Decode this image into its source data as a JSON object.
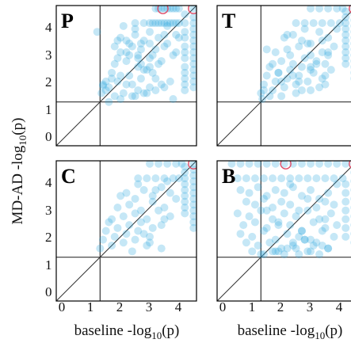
{
  "figure": {
    "y_axis_label": {
      "main": "MD-AD -log",
      "sub": "10",
      "tail": "(p)"
    },
    "x_axis_label": {
      "main": "baseline -log",
      "sub": "10",
      "tail": "(p)"
    },
    "x_tick_labels": [
      "0",
      "1",
      "2",
      "3",
      "4"
    ],
    "y_tick_labels": [
      "0",
      "1",
      "2",
      "3",
      "4"
    ]
  },
  "colors": {
    "points": "#2ea8e0",
    "highlight_ring": "#e04a66",
    "reference_lines": "#333333"
  },
  "chart_data": [
    {
      "type": "scatter",
      "panel_label": "P",
      "xlim": [
        -0.2,
        4.6
      ],
      "ylim": [
        -0.2,
        4.6
      ],
      "threshold": 1.3,
      "diagonal": true,
      "highlighted": [
        [
          3.45,
          4.5
        ],
        [
          4.5,
          4.5
        ]
      ],
      "x": [
        4.5,
        4.5,
        4.5,
        4.5,
        4.5,
        4.5,
        4.5,
        4.5,
        4.5,
        4.5,
        4.5,
        4.5,
        4.5,
        4.5,
        4.2,
        4.2,
        4.2,
        4.2,
        4.2,
        4.2,
        4.2,
        4.2,
        4.2,
        4.2,
        4.2,
        4.2,
        3.2,
        3.4,
        3.6,
        3.8,
        4.0,
        3.5,
        3.9,
        3.3,
        3.7,
        2.5,
        2.8,
        3.0,
        3.1,
        3.2,
        3.3,
        3.4,
        3.5,
        3.6,
        3.7,
        3.8,
        3.9,
        4.0,
        2.2,
        2.5,
        2.7,
        3.0,
        3.3,
        3.6,
        3.9,
        2.0,
        2.4,
        2.8,
        3.2,
        3.6,
        4.0,
        1.9,
        2.3,
        2.7,
        3.1,
        3.5,
        3.9,
        1.8,
        2.2,
        2.6,
        3.0,
        3.4,
        3.8,
        2.0,
        2.5,
        3.0,
        3.5,
        1.8,
        2.1,
        2.6,
        2.9,
        3.3,
        1.7,
        2.3,
        2.8,
        3.2,
        1.5,
        2.0,
        2.4,
        2.7,
        3.1,
        1.6,
        1.9,
        2.2,
        2.6,
        3.0,
        3.4,
        3.7,
        1.35,
        1.5,
        1.8,
        2.1,
        2.5,
        2.9,
        1.6,
        2.0,
        2.4,
        2.8,
        3.2,
        1.4,
        1.7,
        2.2,
        2.6,
        3.0,
        1.2,
        1.9,
        2.3,
        2.7,
        3.5,
        3.8,
        1.4
      ],
      "y": [
        4.5,
        4.2,
        4.0,
        3.8,
        3.6,
        3.4,
        3.2,
        3.0,
        2.8,
        2.6,
        2.4,
        2.2,
        2.0,
        1.8,
        4.3,
        4.0,
        3.7,
        3.5,
        3.2,
        3.0,
        2.8,
        2.5,
        2.3,
        2.1,
        1.9,
        1.7,
        4.5,
        4.5,
        4.5,
        4.5,
        4.5,
        4.5,
        4.5,
        4.5,
        4.5,
        4.0,
        4.0,
        4.0,
        4.0,
        4.0,
        4.0,
        4.0,
        4.0,
        4.0,
        4.0,
        4.0,
        4.0,
        4.0,
        3.4,
        3.6,
        3.3,
        3.7,
        3.5,
        3.9,
        3.6,
        3.0,
        3.2,
        3.4,
        3.1,
        3.3,
        3.5,
        2.8,
        2.9,
        3.1,
        2.9,
        3.2,
        3.0,
        2.6,
        2.7,
        2.8,
        2.5,
        2.7,
        2.9,
        3.5,
        3.8,
        3.3,
        3.6,
        3.2,
        3.9,
        2.5,
        2.4,
        2.6,
        2.3,
        2.2,
        2.4,
        2.1,
        2.0,
        2.2,
        1.9,
        2.1,
        2.3,
        1.8,
        2.0,
        1.9,
        1.7,
        1.8,
        1.9,
        2.0,
        1.6,
        1.7,
        1.5,
        1.6,
        1.5,
        1.6,
        1.3,
        1.4,
        1.5,
        1.6,
        1.7,
        1.9,
        2.1,
        3.0,
        2.9,
        2.8,
        3.7,
        3.4,
        3.3,
        2.6,
        1.8,
        1.4,
        1.85
      ]
    },
    {
      "type": "scatter",
      "panel_label": "T",
      "xlim": [
        -0.2,
        4.6
      ],
      "ylim": [
        -0.2,
        4.6
      ],
      "threshold": 1.3,
      "diagonal": true,
      "highlighted": [
        [
          4.5,
          4.5
        ]
      ],
      "x": [
        4.5,
        4.5,
        4.5,
        4.5,
        4.5,
        4.5,
        4.5,
        4.5,
        4.5,
        4.5,
        4.5,
        4.5,
        4.5,
        4.2,
        4.2,
        4.2,
        4.2,
        4.2,
        4.2,
        4.2,
        4.2,
        4.2,
        4.2,
        3.0,
        3.3,
        3.6,
        3.9,
        4.1,
        2.5,
        2.8,
        3.1,
        3.4,
        3.7,
        4.0,
        2.1,
        2.4,
        2.7,
        3.0,
        3.3,
        3.6,
        3.9,
        1.8,
        2.2,
        2.6,
        3.0,
        3.4,
        3.8,
        1.6,
        2.0,
        2.4,
        2.8,
        3.2,
        3.6,
        1.5,
        1.9,
        2.3,
        2.7,
        3.1,
        3.5,
        1.4,
        1.8,
        2.2,
        2.6,
        3.0,
        3.4,
        1.3,
        1.7,
        2.1,
        2.5,
        2.9,
        3.3,
        1.6,
        2.0,
        2.5,
        3.0,
        3.5,
        1.5,
        2.3,
        2.9,
        3.6,
        1.9,
        2.6,
        3.2,
        1.4,
        2.2,
        2.8,
        3.4,
        1.7,
        2.4,
        3.0,
        3.7,
        2.0,
        2.7,
        3.5,
        1.35
      ],
      "y": [
        4.5,
        4.3,
        4.1,
        3.9,
        3.7,
        3.5,
        3.3,
        3.1,
        2.9,
        2.7,
        2.5,
        2.3,
        2.1,
        4.4,
        4.2,
        4.0,
        3.8,
        3.6,
        3.4,
        3.2,
        3.0,
        2.8,
        2.6,
        4.5,
        4.5,
        4.5,
        4.5,
        4.5,
        4.0,
        4.0,
        4.0,
        4.0,
        4.0,
        4.0,
        3.5,
        3.6,
        3.4,
        3.3,
        3.7,
        3.5,
        3.8,
        3.0,
        3.1,
        3.2,
        2.9,
        3.0,
        3.2,
        2.5,
        2.7,
        2.6,
        2.8,
        2.7,
        2.9,
        2.2,
        2.3,
        2.4,
        2.5,
        2.3,
        2.6,
        1.9,
        2.0,
        2.1,
        2.2,
        2.4,
        2.1,
        1.6,
        1.7,
        1.8,
        1.9,
        2.0,
        1.8,
        1.5,
        1.5,
        1.6,
        1.7,
        1.9,
        3.1,
        2.9,
        3.3,
        3.0,
        2.3,
        2.0,
        2.6,
        1.7,
        3.6,
        3.8,
        3.4,
        2.6,
        2.2,
        2.5,
        2.4,
        2.0,
        1.7,
        2.2,
        1.4
      ]
    },
    {
      "type": "scatter",
      "panel_label": "C",
      "xlim": [
        -0.2,
        4.6
      ],
      "ylim": [
        -0.2,
        4.6
      ],
      "threshold": 1.3,
      "diagonal": true,
      "highlighted": [
        [
          4.5,
          4.5
        ]
      ],
      "x": [
        4.5,
        4.5,
        4.5,
        4.5,
        4.5,
        4.5,
        4.5,
        4.5,
        4.5,
        4.5,
        4.5,
        4.5,
        4.2,
        4.2,
        4.2,
        4.2,
        4.2,
        4.2,
        4.2,
        4.2,
        4.2,
        3.0,
        3.3,
        3.6,
        3.9,
        4.1,
        2.6,
        2.9,
        3.2,
        3.5,
        3.8,
        4.0,
        2.2,
        2.5,
        2.8,
        3.1,
        3.4,
        3.7,
        1.9,
        2.3,
        2.7,
        3.1,
        3.5,
        3.9,
        1.7,
        2.1,
        2.5,
        2.9,
        3.3,
        3.7,
        1.5,
        1.9,
        2.3,
        2.7,
        3.1,
        3.5,
        1.4,
        1.8,
        2.2,
        2.6,
        3.0,
        3.4,
        1.3,
        1.7,
        2.1,
        2.5,
        2.9,
        2.0,
        2.6,
        3.2,
        3.6,
        1.6,
        2.4,
        3.0,
        2.8,
        3.4
      ],
      "y": [
        4.5,
        4.3,
        4.1,
        3.9,
        3.7,
        3.5,
        3.3,
        3.1,
        2.9,
        2.7,
        2.5,
        2.3,
        4.4,
        4.2,
        4.0,
        3.8,
        3.6,
        3.4,
        3.2,
        3.0,
        2.8,
        4.5,
        4.5,
        4.5,
        4.5,
        4.5,
        4.0,
        4.0,
        4.0,
        4.0,
        4.0,
        4.0,
        3.5,
        3.3,
        3.6,
        3.4,
        3.7,
        3.5,
        3.0,
        3.1,
        2.9,
        3.2,
        3.0,
        3.3,
        2.6,
        2.7,
        2.8,
        2.6,
        2.9,
        2.7,
        2.2,
        2.3,
        2.4,
        2.5,
        2.3,
        2.6,
        1.9,
        2.0,
        2.1,
        2.2,
        2.0,
        2.4,
        1.6,
        1.7,
        1.8,
        1.9,
        1.7,
        3.4,
        3.8,
        3.6,
        3.9,
        2.5,
        1.5,
        1.8,
        2.1,
        1.6
      ]
    },
    {
      "type": "scatter",
      "panel_label": "B",
      "xlim": [
        -0.2,
        4.6
      ],
      "ylim": [
        -0.2,
        4.6
      ],
      "threshold": 1.3,
      "diagonal": true,
      "highlighted": [
        [
          2.15,
          4.5
        ],
        [
          4.5,
          4.5
        ]
      ],
      "x": [
        0.3,
        0.6,
        0.9,
        1.2,
        1.5,
        1.8,
        2.1,
        2.4,
        2.7,
        3.0,
        3.3,
        3.6,
        3.9,
        4.2,
        4.5,
        0.5,
        0.8,
        1.1,
        1.4,
        1.7,
        2.0,
        2.3,
        2.6,
        2.9,
        3.2,
        3.5,
        3.8,
        4.1,
        4.5,
        4.5,
        4.5,
        4.5,
        4.5,
        4.5,
        4.5,
        4.5,
        4.5,
        4.2,
        4.2,
        4.2,
        4.2,
        4.2,
        4.2,
        4.2,
        0.6,
        0.9,
        1.2,
        1.5,
        1.8,
        2.1,
        2.4,
        2.7,
        3.0,
        3.3,
        3.6,
        3.9,
        0.8,
        1.1,
        1.4,
        1.7,
        2.0,
        2.3,
        2.6,
        2.9,
        3.2,
        3.5,
        3.8,
        0.5,
        0.9,
        1.3,
        1.7,
        2.1,
        2.5,
        2.9,
        3.3,
        3.7,
        0.7,
        1.1,
        1.5,
        1.9,
        2.3,
        2.7,
        3.1,
        3.5,
        3.9,
        0.6,
        1.0,
        1.4,
        1.8,
        2.2,
        2.6,
        3.0,
        3.4,
        3.8,
        0.8,
        1.2,
        1.6,
        2.0,
        2.4,
        2.8,
        3.2,
        3.6,
        1.0,
        1.4,
        1.8,
        2.2,
        2.6,
        3.0,
        3.4,
        1.3,
        1.7,
        2.1,
        2.5,
        2.9,
        3.3,
        1.5,
        1.9,
        2.3,
        2.7,
        3.1,
        1.9,
        2.8,
        3.6,
        2.4,
        3.5
      ],
      "y": [
        4.5,
        4.5,
        4.5,
        4.5,
        4.5,
        4.5,
        4.5,
        4.5,
        4.5,
        4.5,
        4.5,
        4.5,
        4.5,
        4.5,
        4.5,
        4.0,
        4.0,
        4.0,
        4.0,
        4.0,
        4.0,
        4.0,
        4.0,
        4.0,
        4.0,
        4.0,
        4.0,
        4.0,
        4.2,
        3.9,
        3.6,
        3.3,
        3.0,
        2.7,
        2.4,
        2.1,
        1.8,
        3.8,
        3.5,
        3.2,
        2.9,
        2.6,
        2.3,
        2.0,
        3.6,
        3.5,
        3.7,
        3.4,
        3.6,
        3.5,
        3.7,
        3.4,
        3.6,
        3.3,
        3.5,
        3.8,
        3.2,
        3.1,
        3.3,
        3.0,
        3.2,
        3.1,
        2.9,
        3.3,
        3.0,
        3.2,
        3.1,
        2.8,
        2.7,
        2.9,
        2.6,
        2.8,
        2.7,
        2.9,
        2.6,
        2.8,
        2.4,
        2.5,
        2.3,
        2.5,
        2.4,
        2.2,
        2.5,
        2.3,
        2.4,
        2.1,
        2.0,
        2.2,
        1.9,
        2.1,
        2.0,
        1.9,
        2.2,
        2.0,
        1.8,
        1.7,
        1.8,
        1.6,
        1.7,
        1.9,
        1.8,
        1.6,
        1.5,
        1.4,
        1.5,
        1.6,
        1.4,
        1.5,
        1.7,
        1.4,
        1.5,
        1.4,
        1.6,
        1.5,
        1.4,
        2.9,
        2.4,
        3.8,
        2.2,
        1.7,
        1.5,
        1.9,
        1.6,
        1.8,
        2.6
      ]
    }
  ]
}
